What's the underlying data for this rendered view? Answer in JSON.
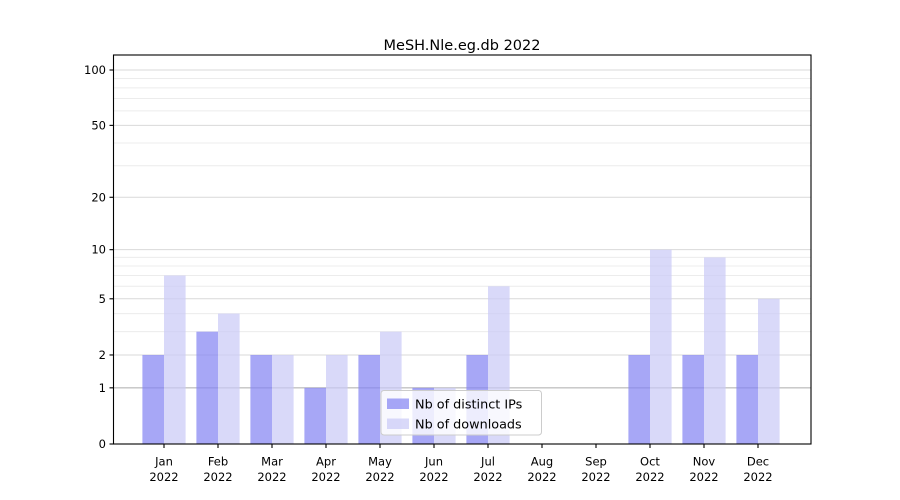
{
  "chart_data": {
    "type": "bar",
    "title": "MeSH.Nle.eg.db 2022",
    "categories": [
      "Jan 2022",
      "Feb 2022",
      "Mar 2022",
      "Apr 2022",
      "May 2022",
      "Jun 2022",
      "Jul 2022",
      "Aug 2022",
      "Sep 2022",
      "Oct 2022",
      "Nov 2022",
      "Dec 2022"
    ],
    "series": [
      {
        "name": "Nb of distinct IPs",
        "color": "#8585f2",
        "values": [
          2,
          3,
          2,
          1,
          2,
          1,
          2,
          0,
          0,
          2,
          2,
          2
        ]
      },
      {
        "name": "Nb of downloads",
        "color": "#cbcbf7",
        "values": [
          7,
          4,
          2,
          2,
          3,
          1,
          6,
          0,
          0,
          10,
          9,
          5
        ]
      }
    ],
    "bar_alpha": 0.72,
    "xlabel": "",
    "ylabel": "",
    "yscale": "log1p",
    "ylim": [
      0,
      100
    ],
    "yticks": [
      0,
      1,
      2,
      5,
      10,
      20,
      50,
      100
    ],
    "yticks_minor": [
      3,
      4,
      6,
      7,
      8,
      9,
      30,
      40,
      60,
      70,
      80,
      90
    ],
    "grid": true,
    "legend": {
      "position": "lower center"
    }
  },
  "colors": {
    "background": "#ffffff",
    "axis": "#000000",
    "grid_major": "#d9d9d9",
    "grid_minor": "#ececec",
    "grid_emphasis": "#c3c3c3",
    "legend_border": "#cccccc",
    "legend_background": "#ffffff"
  }
}
